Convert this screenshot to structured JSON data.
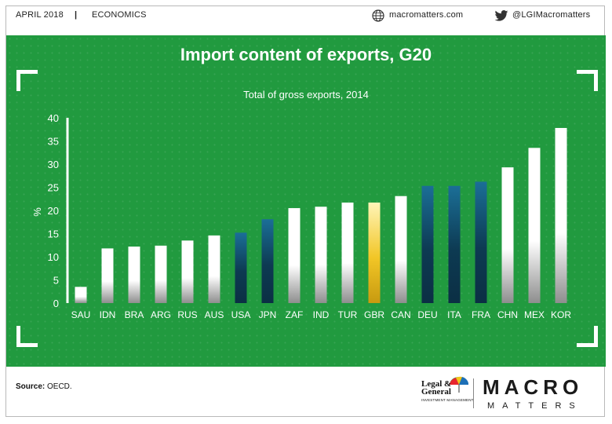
{
  "header": {
    "date": "APRIL 2018",
    "separator": "|",
    "category": "ECONOMICS",
    "website": "macromatters.com",
    "twitter": "@LGIMacromatters"
  },
  "chart_data": {
    "type": "bar",
    "title": "Import content of exports, G20",
    "subtitle": "Total of gross exports, 2014",
    "xlabel": "",
    "ylabel": "%",
    "ylim": [
      0,
      40
    ],
    "yticks": [
      0,
      5,
      10,
      15,
      20,
      25,
      30,
      35,
      40
    ],
    "grid": false,
    "categories": [
      "SAU",
      "IDN",
      "BRA",
      "ARG",
      "RUS",
      "AUS",
      "USA",
      "JPN",
      "ZAF",
      "IND",
      "TUR",
      "GBR",
      "CAN",
      "DEU",
      "ITA",
      "FRA",
      "CHN",
      "MEX",
      "KOR"
    ],
    "values": [
      3.5,
      11.8,
      12.2,
      12.4,
      13.5,
      14.6,
      15.2,
      18.1,
      20.5,
      20.8,
      21.7,
      21.7,
      23.1,
      25.3,
      25.3,
      26.2,
      29.3,
      33.5,
      37.8
    ],
    "bar_colors": [
      "white",
      "white",
      "white",
      "white",
      "white",
      "white",
      "navy",
      "navy",
      "white",
      "white",
      "white",
      "gold",
      "white",
      "navy",
      "navy",
      "navy",
      "white",
      "white",
      "white"
    ]
  },
  "colors": {
    "background": "#219a3f",
    "bar_white": "#ffffff",
    "bar_navy": "#0f3b52",
    "bar_gold": "#f0c420"
  },
  "footer": {
    "source_label": "Source:",
    "source_text": " OECD.",
    "brand_lg_line1": "Legal &",
    "brand_lg_line2": "General",
    "brand_lg_line3": "INVESTMENT MANAGEMENT",
    "brand_macro": "MACRO",
    "brand_matters": "MATTERS"
  }
}
